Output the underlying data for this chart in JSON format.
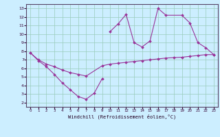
{
  "xlabel": "Windchill (Refroidissement éolien,°C)",
  "xlim": [
    -0.5,
    23.5
  ],
  "ylim": [
    1.5,
    13.5
  ],
  "xticks": [
    0,
    1,
    2,
    3,
    4,
    5,
    6,
    7,
    8,
    9,
    10,
    11,
    12,
    13,
    14,
    15,
    16,
    17,
    18,
    19,
    20,
    21,
    22,
    23
  ],
  "yticks": [
    2,
    3,
    4,
    5,
    6,
    7,
    8,
    9,
    10,
    11,
    12,
    13
  ],
  "line_color": "#993399",
  "bg_color": "#cceeff",
  "grid_color": "#99ccbb",
  "series": [
    {
      "x": [
        0,
        1,
        2,
        3,
        4,
        5,
        6,
        7,
        8,
        9
      ],
      "y": [
        7.8,
        6.9,
        6.2,
        5.3,
        4.3,
        3.5,
        2.7,
        2.4,
        3.1,
        4.8
      ]
    },
    {
      "x": [
        0,
        1,
        2,
        3,
        4,
        5,
        6,
        7,
        9,
        10,
        11,
        12,
        13,
        14,
        15,
        16,
        17,
        18,
        19,
        20,
        21,
        22,
        23
      ],
      "y": [
        7.8,
        7.0,
        6.5,
        6.2,
        5.8,
        5.5,
        5.3,
        5.1,
        6.3,
        6.5,
        6.6,
        6.7,
        6.8,
        6.9,
        7.0,
        7.1,
        7.2,
        7.25,
        7.3,
        7.4,
        7.5,
        7.6,
        7.6
      ]
    },
    {
      "x": [
        10,
        11,
        12,
        13,
        14,
        15,
        16,
        17,
        19,
        20,
        21,
        22,
        23
      ],
      "y": [
        10.3,
        11.2,
        12.3,
        9.0,
        8.5,
        9.2,
        13.0,
        12.2,
        12.2,
        11.3,
        9.0,
        8.4,
        7.6
      ]
    }
  ]
}
